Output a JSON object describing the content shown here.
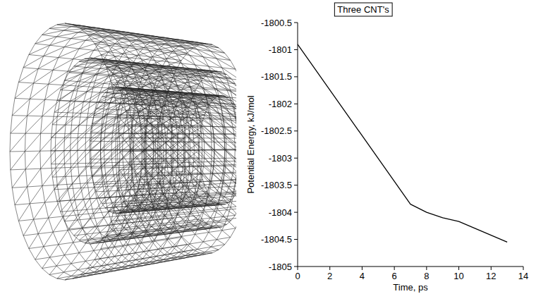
{
  "chart_data": {
    "type": "line",
    "title": "Three CNT's",
    "x_label": "Time, ps",
    "y_label": "Potential Energy, kJ/mol",
    "x": [
      0,
      7,
      8,
      9,
      10,
      13
    ],
    "values": [
      -1800.9,
      -1803.85,
      -1804.0,
      -1804.1,
      -1804.17,
      -1804.55
    ],
    "color": "#000000",
    "xlim": [
      0,
      14
    ],
    "xticks": [
      0,
      2,
      4,
      6,
      8,
      10,
      12,
      14
    ],
    "ylim": [
      -1805,
      -1800.5
    ],
    "yticks": [
      -1805,
      -1804.5,
      -1804,
      -1803.5,
      -1803,
      -1802.5,
      -1802,
      -1801.5,
      -1801,
      -1800.5
    ],
    "grid": false
  }
}
